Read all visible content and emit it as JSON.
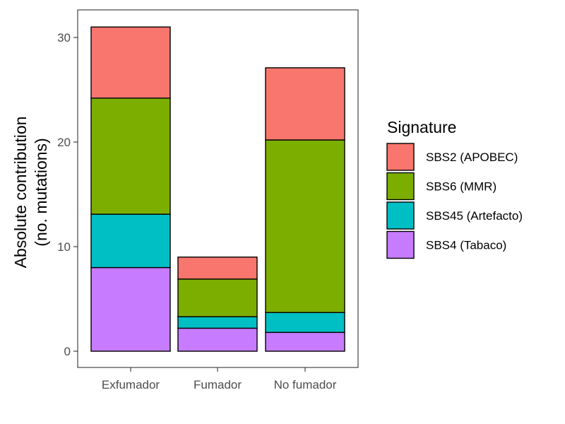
{
  "chart_data": {
    "type": "bar",
    "stacked": true,
    "categories": [
      "Exfumador",
      "Fumador",
      "No fumador"
    ],
    "series": [
      {
        "name": "SBS4 (Tabaco)",
        "color": "#C77CFF",
        "values": [
          8.0,
          2.2,
          1.8
        ]
      },
      {
        "name": "SBS45 (Artefacto)",
        "color": "#00BFC4",
        "values": [
          5.1,
          1.1,
          1.9
        ]
      },
      {
        "name": "SBS6 (MMR)",
        "color": "#7CAE00",
        "values": [
          11.1,
          3.6,
          16.5
        ]
      },
      {
        "name": "SBS2 (APOBEC)",
        "color": "#F8766D",
        "values": [
          6.8,
          2.1,
          6.9
        ]
      }
    ],
    "ylabel_line1": "Absolute contribution",
    "ylabel_line2": "(no. mutations)",
    "xlabel": "",
    "ylim": [
      -1.4,
      32.6
    ],
    "yticks": [
      0,
      10,
      20,
      30
    ],
    "grid": false,
    "legend": {
      "title": "Signature",
      "position": "right",
      "entries": [
        "SBS2 (APOBEC)",
        "SBS6 (MMR)",
        "SBS45 (Artefacto)",
        "SBS4 (Tabaco)"
      ]
    }
  }
}
